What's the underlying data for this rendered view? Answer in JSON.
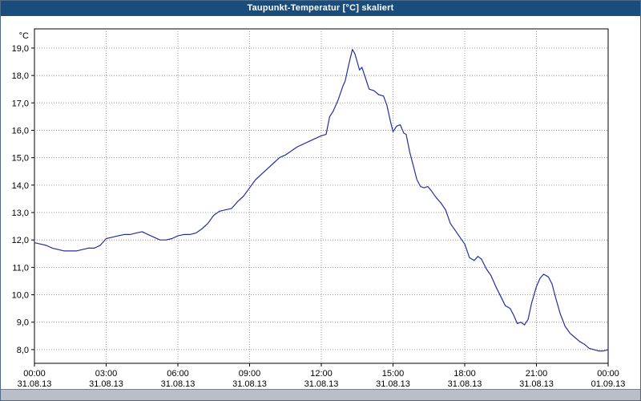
{
  "window": {
    "title": "Taupunkt-Temperatur [°C] skaliert",
    "title_bar_color": "#1a4c7c"
  },
  "chart_data": {
    "type": "line",
    "title": "Taupunkt-Temperatur [°C] skaliert",
    "grid": true,
    "grid_color": "#9a9a9a",
    "line_color": "#252f9a",
    "legend": "none",
    "y_axis": {
      "unit": "°C",
      "min": 7.5,
      "max": 19.7,
      "ticks": [
        {
          "value": 8,
          "label": "8,0"
        },
        {
          "value": 9,
          "label": "9,0"
        },
        {
          "value": 10,
          "label": "10,0"
        },
        {
          "value": 11,
          "label": "11,0"
        },
        {
          "value": 12,
          "label": "12,0"
        },
        {
          "value": 13,
          "label": "13,0"
        },
        {
          "value": 14,
          "label": "14,0"
        },
        {
          "value": 15,
          "label": "15,0"
        },
        {
          "value": 16,
          "label": "16,0"
        },
        {
          "value": 17,
          "label": "17,0"
        },
        {
          "value": 18,
          "label": "18,0"
        },
        {
          "value": 19,
          "label": "19,0"
        }
      ]
    },
    "x_axis": {
      "min_hours": 0,
      "max_hours": 24,
      "ticks": [
        {
          "hours": 0,
          "time": "00:00",
          "date": "31.08.13"
        },
        {
          "hours": 3,
          "time": "03:00",
          "date": "31.08.13"
        },
        {
          "hours": 6,
          "time": "06:00",
          "date": "31.08.13"
        },
        {
          "hours": 9,
          "time": "09:00",
          "date": "31.08.13"
        },
        {
          "hours": 12,
          "time": "12:00",
          "date": "31.08.13"
        },
        {
          "hours": 15,
          "time": "15:00",
          "date": "31.08.13"
        },
        {
          "hours": 18,
          "time": "18:00",
          "date": "31.08.13"
        },
        {
          "hours": 21,
          "time": "21:00",
          "date": "31.08.13"
        },
        {
          "hours": 24,
          "time": "00:00",
          "date": "01.09.13"
        }
      ]
    },
    "series": [
      {
        "name": "Taupunkt-Temperatur",
        "points": [
          [
            0,
            11.9
          ],
          [
            0.25,
            11.85
          ],
          [
            0.5,
            11.8
          ],
          [
            0.75,
            11.7
          ],
          [
            1,
            11.65
          ],
          [
            1.25,
            11.6
          ],
          [
            1.5,
            11.6
          ],
          [
            1.75,
            11.6
          ],
          [
            2,
            11.65
          ],
          [
            2.25,
            11.7
          ],
          [
            2.5,
            11.7
          ],
          [
            2.75,
            11.8
          ],
          [
            3,
            12.05
          ],
          [
            3.25,
            12.1
          ],
          [
            3.5,
            12.15
          ],
          [
            3.75,
            12.2
          ],
          [
            4,
            12.2
          ],
          [
            4.25,
            12.25
          ],
          [
            4.5,
            12.3
          ],
          [
            4.75,
            12.2
          ],
          [
            5,
            12.1
          ],
          [
            5.25,
            12.0
          ],
          [
            5.5,
            12.0
          ],
          [
            5.75,
            12.05
          ],
          [
            6,
            12.15
          ],
          [
            6.25,
            12.2
          ],
          [
            6.5,
            12.2
          ],
          [
            6.75,
            12.25
          ],
          [
            7,
            12.4
          ],
          [
            7.25,
            12.6
          ],
          [
            7.5,
            12.9
          ],
          [
            7.75,
            13.05
          ],
          [
            8,
            13.1
          ],
          [
            8.25,
            13.15
          ],
          [
            8.5,
            13.4
          ],
          [
            8.75,
            13.6
          ],
          [
            9,
            13.9
          ],
          [
            9.25,
            14.2
          ],
          [
            9.5,
            14.4
          ],
          [
            9.75,
            14.6
          ],
          [
            10,
            14.8
          ],
          [
            10.25,
            15.0
          ],
          [
            10.5,
            15.1
          ],
          [
            10.75,
            15.25
          ],
          [
            11,
            15.4
          ],
          [
            11.25,
            15.5
          ],
          [
            11.5,
            15.6
          ],
          [
            11.75,
            15.7
          ],
          [
            12,
            15.8
          ],
          [
            12.2,
            15.85
          ],
          [
            12.35,
            16.5
          ],
          [
            12.5,
            16.7
          ],
          [
            12.7,
            17.1
          ],
          [
            12.9,
            17.6
          ],
          [
            13,
            17.8
          ],
          [
            13.15,
            18.4
          ],
          [
            13.3,
            18.95
          ],
          [
            13.4,
            18.8
          ],
          [
            13.5,
            18.5
          ],
          [
            13.6,
            18.2
          ],
          [
            13.7,
            18.3
          ],
          [
            13.85,
            17.9
          ],
          [
            14,
            17.5
          ],
          [
            14.2,
            17.45
          ],
          [
            14.4,
            17.3
          ],
          [
            14.6,
            17.25
          ],
          [
            14.75,
            16.9
          ],
          [
            14.9,
            16.3
          ],
          [
            15,
            15.95
          ],
          [
            15.15,
            16.15
          ],
          [
            15.3,
            16.2
          ],
          [
            15.45,
            15.9
          ],
          [
            15.55,
            15.85
          ],
          [
            15.7,
            15.2
          ],
          [
            15.85,
            14.7
          ],
          [
            16,
            14.2
          ],
          [
            16.15,
            13.95
          ],
          [
            16.3,
            13.9
          ],
          [
            16.45,
            13.95
          ],
          [
            16.6,
            13.8
          ],
          [
            16.8,
            13.55
          ],
          [
            17,
            13.35
          ],
          [
            17.2,
            13.1
          ],
          [
            17.4,
            12.6
          ],
          [
            17.6,
            12.35
          ],
          [
            17.8,
            12.1
          ],
          [
            18,
            11.85
          ],
          [
            18.2,
            11.35
          ],
          [
            18.4,
            11.25
          ],
          [
            18.55,
            11.4
          ],
          [
            18.7,
            11.3
          ],
          [
            18.9,
            10.95
          ],
          [
            19.1,
            10.7
          ],
          [
            19.3,
            10.3
          ],
          [
            19.5,
            9.95
          ],
          [
            19.7,
            9.6
          ],
          [
            19.9,
            9.5
          ],
          [
            20.05,
            9.25
          ],
          [
            20.2,
            8.95
          ],
          [
            20.35,
            9.0
          ],
          [
            20.5,
            8.9
          ],
          [
            20.65,
            9.1
          ],
          [
            20.8,
            9.7
          ],
          [
            21,
            10.3
          ],
          [
            21.15,
            10.6
          ],
          [
            21.3,
            10.75
          ],
          [
            21.5,
            10.65
          ],
          [
            21.65,
            10.4
          ],
          [
            21.8,
            9.9
          ],
          [
            22,
            9.3
          ],
          [
            22.2,
            8.85
          ],
          [
            22.4,
            8.6
          ],
          [
            22.6,
            8.45
          ],
          [
            22.8,
            8.3
          ],
          [
            23,
            8.2
          ],
          [
            23.2,
            8.05
          ],
          [
            23.4,
            8.0
          ],
          [
            23.6,
            7.95
          ],
          [
            23.8,
            7.95
          ],
          [
            24,
            8.0
          ]
        ]
      }
    ]
  }
}
